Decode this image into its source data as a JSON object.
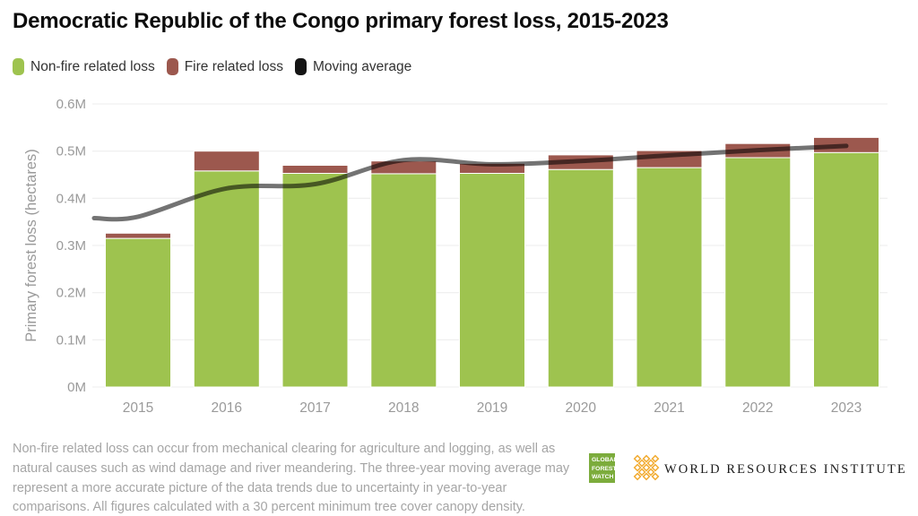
{
  "title": "Democratic Republic of the Congo primary forest loss, 2015-2023",
  "legend": {
    "items": [
      {
        "label": "Non-fire related loss",
        "color": "#9EC34F"
      },
      {
        "label": "Fire related loss",
        "color": "#9C584E"
      },
      {
        "label": "Moving average",
        "color": "#151515"
      }
    ]
  },
  "chart_data": {
    "type": "bar",
    "stacked": true,
    "title": "Democratic Republic of the Congo primary forest loss, 2015-2023",
    "categories": [
      "2015",
      "2016",
      "2017",
      "2018",
      "2019",
      "2020",
      "2021",
      "2022",
      "2023"
    ],
    "series": [
      {
        "name": "Non-fire related loss",
        "color": "#9EC34F",
        "values": [
          315000,
          458000,
          453000,
          452000,
          453000,
          461000,
          465000,
          486000,
          497000
        ]
      },
      {
        "name": "Fire related loss",
        "color": "#9C584E",
        "values": [
          11000,
          42000,
          17000,
          27000,
          21000,
          31000,
          36000,
          30000,
          32000
        ]
      }
    ],
    "moving_average": {
      "name": "Moving average",
      "color": "rgba(0,0,0,0.55)",
      "edge_start": 358000,
      "values": [
        361000,
        421000,
        430000,
        481000,
        472000,
        479000,
        491000,
        502000,
        511000
      ]
    },
    "xlabel": "",
    "ylabel": "Primary forest loss (hectares)",
    "yticks": [
      "0M",
      "0.1M",
      "0.2M",
      "0.3M",
      "0.4M",
      "0.5M",
      "0.6M"
    ],
    "ylim": [
      0,
      600000
    ],
    "grid": true,
    "legend_position": "top-left"
  },
  "footer": {
    "note": "Non-fire related loss can occur from mechanical clearing for agriculture and logging, as well as natural causes such as wind damage and river meandering. The three-year moving average may represent a more accurate picture of the data trends due to uncertainty in year-to-year comparisons. All figures calculated with a 30 percent minimum tree cover canopy density."
  },
  "logos": {
    "gfw_lines": [
      "GLOBAL",
      "FOREST",
      "WATCH"
    ],
    "wri": "WORLD RESOURCES INSTITUTE",
    "gfw_green": "#7CAC3C",
    "wri_gold": "#F2AC33"
  }
}
